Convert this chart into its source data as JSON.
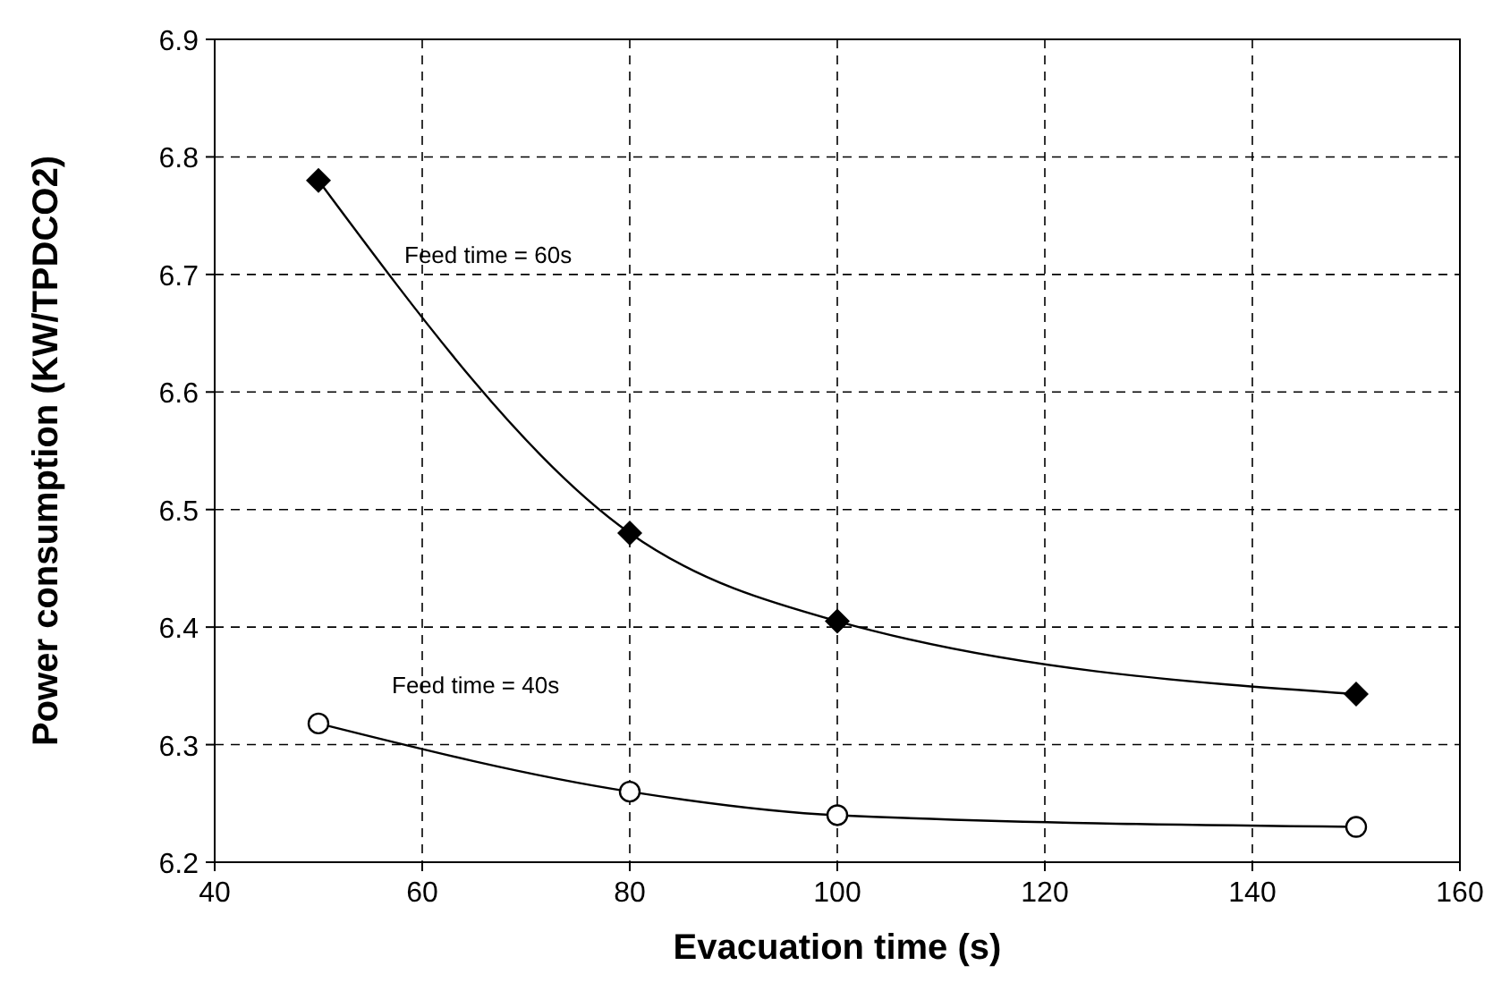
{
  "chart_data": {
    "type": "line",
    "xlabel": "Evacuation time (s)",
    "ylabel": "Power consumption (KW/TPDCO2)",
    "x": [
      50,
      80,
      100,
      150
    ],
    "series": [
      {
        "name": "Feed time = 60s",
        "color": "#000000",
        "marker": "diamond",
        "values": [
          6.78,
          6.48,
          6.405,
          6.343
        ]
      },
      {
        "name": "Feed time = 40s",
        "color": "#000000",
        "marker": "circle",
        "values": [
          6.318,
          6.26,
          6.24,
          6.23
        ]
      }
    ],
    "xlim": [
      40,
      160
    ],
    "xticks": [
      40,
      60,
      80,
      100,
      120,
      140,
      160
    ],
    "ylim": [
      6.2,
      6.9
    ],
    "yticks": [
      6.2,
      6.3,
      6.4,
      6.5,
      6.6,
      6.7,
      6.8,
      6.9
    ],
    "grid": true,
    "line_style": "solid"
  }
}
